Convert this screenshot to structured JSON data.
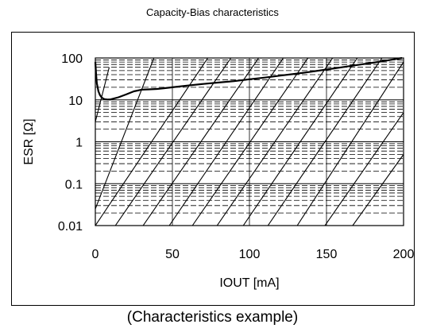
{
  "chart_data": {
    "type": "line",
    "title": "Capacity-Bias characteristics",
    "xlabel": "IOUT [mA]",
    "ylabel": "ESR [Ω]",
    "xlim": [
      0,
      200
    ],
    "ylim": [
      0.01,
      100
    ],
    "yscale": "log",
    "x_ticks": [
      "0",
      "50",
      "100",
      "150",
      "200"
    ],
    "y_ticks": [
      "0.01",
      "0.1",
      "1",
      "10",
      "100"
    ],
    "grid": true,
    "series": [
      {
        "points": [
          [
            0,
            80
          ],
          [
            0.5,
            40
          ],
          [
            1,
            25
          ],
          [
            2,
            16
          ],
          [
            3,
            13
          ],
          [
            4,
            11.5
          ],
          [
            5,
            10.8
          ],
          [
            6,
            10.4
          ],
          [
            8,
            10.2
          ],
          [
            10,
            10.3
          ],
          [
            15,
            11.5
          ],
          [
            20,
            13.5
          ],
          [
            25,
            16
          ],
          [
            30,
            17.5
          ],
          [
            35,
            17.8
          ],
          [
            40,
            18.2
          ],
          [
            45,
            19
          ],
          [
            50,
            20
          ],
          [
            60,
            22
          ],
          [
            70,
            24
          ],
          [
            80,
            26
          ],
          [
            90,
            28
          ],
          [
            100,
            31
          ],
          [
            110,
            34
          ],
          [
            120,
            38
          ],
          [
            130,
            42
          ],
          [
            140,
            47
          ],
          [
            150,
            53
          ],
          [
            160,
            60
          ],
          [
            170,
            68
          ],
          [
            180,
            77
          ],
          [
            190,
            88
          ],
          [
            199,
            100
          ]
        ]
      }
    ],
    "hatch_lines": [
      [
        [
          0,
          3
        ],
        [
          9,
          60
        ]
      ],
      [
        [
          0,
          0.025
        ],
        [
          38,
          100
        ]
      ],
      [
        [
          0,
          0.01
        ],
        [
          73,
          100
        ]
      ],
      [
        [
          13,
          0.01
        ],
        [
          88,
          100
        ]
      ],
      [
        [
          31,
          0.01
        ],
        [
          106,
          100
        ]
      ],
      [
        [
          48,
          0.01
        ],
        [
          122,
          100
        ]
      ],
      [
        [
          63,
          0.01
        ],
        [
          138,
          100
        ]
      ],
      [
        [
          79,
          0.01
        ],
        [
          154,
          100
        ]
      ],
      [
        [
          96,
          0.01
        ],
        [
          170,
          100
        ]
      ],
      [
        [
          112,
          0.01
        ],
        [
          186,
          100
        ]
      ],
      [
        [
          131,
          0.01
        ],
        [
          200,
          80
        ]
      ],
      [
        [
          149,
          0.01
        ],
        [
          200,
          5
        ]
      ],
      [
        [
          167,
          0.01
        ],
        [
          200,
          0.5
        ]
      ]
    ]
  },
  "caption": "(Characteristics example)",
  "colors": {
    "line": "#000000",
    "grid": "#000000",
    "background": "#ffffff"
  }
}
